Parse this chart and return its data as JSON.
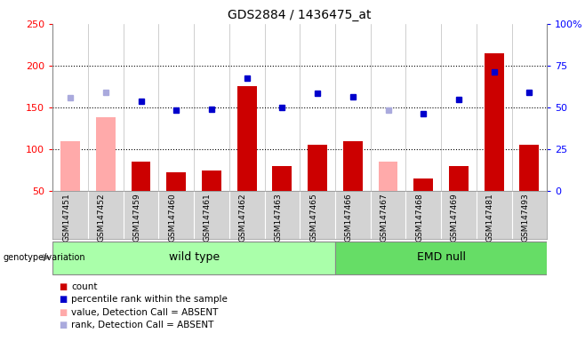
{
  "title": "GDS2884 / 1436475_at",
  "samples": [
    "GSM147451",
    "GSM147452",
    "GSM147459",
    "GSM147460",
    "GSM147461",
    "GSM147462",
    "GSM147463",
    "GSM147465",
    "GSM147466",
    "GSM147467",
    "GSM147468",
    "GSM147469",
    "GSM147481",
    "GSM147493"
  ],
  "count": [
    null,
    null,
    85,
    72,
    75,
    175,
    80,
    105,
    110,
    null,
    65,
    80,
    215,
    105
  ],
  "count_absent": [
    110,
    138,
    null,
    null,
    null,
    null,
    null,
    null,
    null,
    85,
    null,
    null,
    null,
    null
  ],
  "percentile_rank": [
    null,
    null,
    157,
    147,
    148,
    185,
    150,
    167,
    163,
    null,
    143,
    160,
    193,
    168
  ],
  "percentile_rank_absent": [
    162,
    168,
    null,
    null,
    null,
    null,
    null,
    null,
    null,
    147,
    null,
    null,
    null,
    null
  ],
  "wild_type_indices": [
    0,
    1,
    2,
    3,
    4,
    5,
    6,
    7
  ],
  "emd_null_indices": [
    8,
    9,
    10,
    11,
    12,
    13
  ],
  "ylim_left": [
    50,
    250
  ],
  "ylim_right": [
    0,
    100
  ],
  "yticks_left": [
    50,
    100,
    150,
    200,
    250
  ],
  "yticks_right": [
    0,
    25,
    50,
    75,
    100
  ],
  "ytick_labels_left": [
    "50",
    "100",
    "150",
    "200",
    "250"
  ],
  "ytick_labels_right": [
    "0",
    "25",
    "50",
    "75",
    "100%"
  ],
  "bar_color_present": "#cc0000",
  "bar_color_absent": "#ffaaaa",
  "dot_color_present": "#0000cc",
  "dot_color_absent": "#aaaadd",
  "bar_width": 0.55,
  "bg_plot": "#ffffff",
  "bg_xlabel": "#d3d3d3",
  "wild_type_color": "#aaffaa",
  "emd_null_color": "#66dd66",
  "grid_color": "black",
  "legend_items": [
    {
      "label": "count",
      "color": "#cc0000"
    },
    {
      "label": "percentile rank within the sample",
      "color": "#0000cc"
    },
    {
      "label": "value, Detection Call = ABSENT",
      "color": "#ffaaaa"
    },
    {
      "label": "rank, Detection Call = ABSENT",
      "color": "#aaaadd"
    }
  ]
}
